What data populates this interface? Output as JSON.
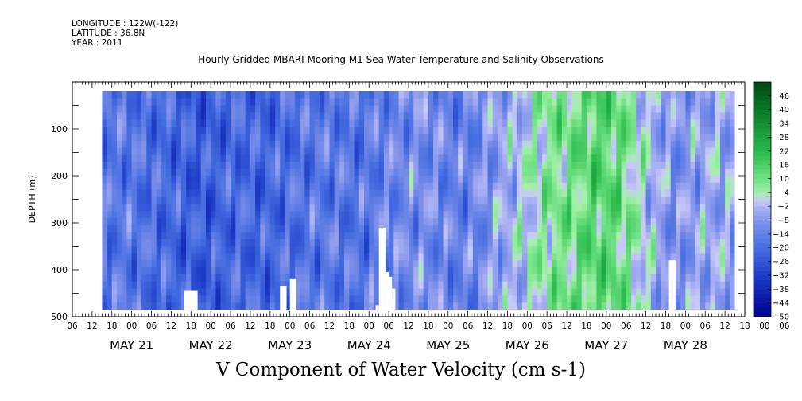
{
  "header": {
    "longitude": "LONGITUDE : 122W(-122)",
    "latitude": "LATITUDE : 36.8N",
    "year": "YEAR : 2011"
  },
  "chart_data": {
    "type": "heatmap",
    "title": "Hourly Gridded MBARI Mooring M1 Sea Water Temperature and Salinity Observations",
    "xlabel": "",
    "ylabel": "DEPTH (m)",
    "colorbar_label": "V Component of Water Velocity (cm s-1)",
    "x_unit": "hours since 2011-05-20 06:00",
    "xlim": [
      0,
      204
    ],
    "ylim": [
      500,
      0
    ],
    "y_ticks": [
      100,
      200,
      300,
      400,
      500
    ],
    "x_hour_labels": [
      "06",
      "12",
      "18",
      "00",
      "06",
      "12",
      "18",
      "00",
      "06",
      "12",
      "18",
      "00",
      "06",
      "12",
      "18",
      "00",
      "06",
      "12",
      "18",
      "00",
      "06",
      "12",
      "18",
      "00",
      "06",
      "12",
      "18",
      "00",
      "06",
      "12",
      "18",
      "00",
      "06",
      "12",
      "18",
      "00",
      "06"
    ],
    "x_date_labels": [
      "MAY 21",
      "MAY 22",
      "MAY 23",
      "MAY 24",
      "MAY 25",
      "MAY 26",
      "MAY 27",
      "MAY 28"
    ],
    "colorbar_ticks": [
      46,
      40,
      34,
      28,
      22,
      16,
      10,
      4,
      -2,
      -8,
      -14,
      -20,
      -26,
      -32,
      -38,
      -44,
      -50
    ],
    "colorbar_range": [
      -50,
      52
    ],
    "data_extent": {
      "time_start": 9,
      "time_end": 201,
      "depth_top": 20,
      "depth_bottom": 485
    },
    "missing_regions": [
      {
        "t0": 34,
        "t1": 38,
        "d0": 445,
        "d1": 485
      },
      {
        "t0": 63,
        "t1": 65,
        "d0": 435,
        "d1": 485
      },
      {
        "t0": 66,
        "t1": 68,
        "d0": 420,
        "d1": 485
      },
      {
        "t0": 92,
        "t1": 93,
        "d0": 475,
        "d1": 485
      },
      {
        "t0": 93,
        "t1": 95,
        "d0": 310,
        "d1": 485
      },
      {
        "t0": 95,
        "t1": 96,
        "d0": 405,
        "d1": 485
      },
      {
        "t0": 96,
        "t1": 97,
        "d0": 415,
        "d1": 485
      },
      {
        "t0": 97,
        "t1": 98,
        "d0": 440,
        "d1": 485
      },
      {
        "t0": 181,
        "t1": 183,
        "d0": 380,
        "d1": 485
      }
    ],
    "time_profile": [
      [
        9,
        -18
      ],
      [
        15,
        -16
      ],
      [
        21,
        -18
      ],
      [
        27,
        -20
      ],
      [
        33,
        -22
      ],
      [
        39,
        -24
      ],
      [
        45,
        -22
      ],
      [
        51,
        -20
      ],
      [
        57,
        -22
      ],
      [
        63,
        -20
      ],
      [
        69,
        -18
      ],
      [
        75,
        -16
      ],
      [
        81,
        -16
      ],
      [
        87,
        -18
      ],
      [
        93,
        -14
      ],
      [
        99,
        -12
      ],
      [
        105,
        -10
      ],
      [
        111,
        -12
      ],
      [
        117,
        -14
      ],
      [
        123,
        -12
      ],
      [
        129,
        -6
      ],
      [
        135,
        -2
      ],
      [
        141,
        4
      ],
      [
        147,
        8
      ],
      [
        153,
        10
      ],
      [
        159,
        14
      ],
      [
        165,
        12
      ],
      [
        171,
        4
      ],
      [
        177,
        -4
      ],
      [
        183,
        -10
      ],
      [
        189,
        -6
      ],
      [
        195,
        -4
      ],
      [
        201,
        -6
      ]
    ]
  }
}
